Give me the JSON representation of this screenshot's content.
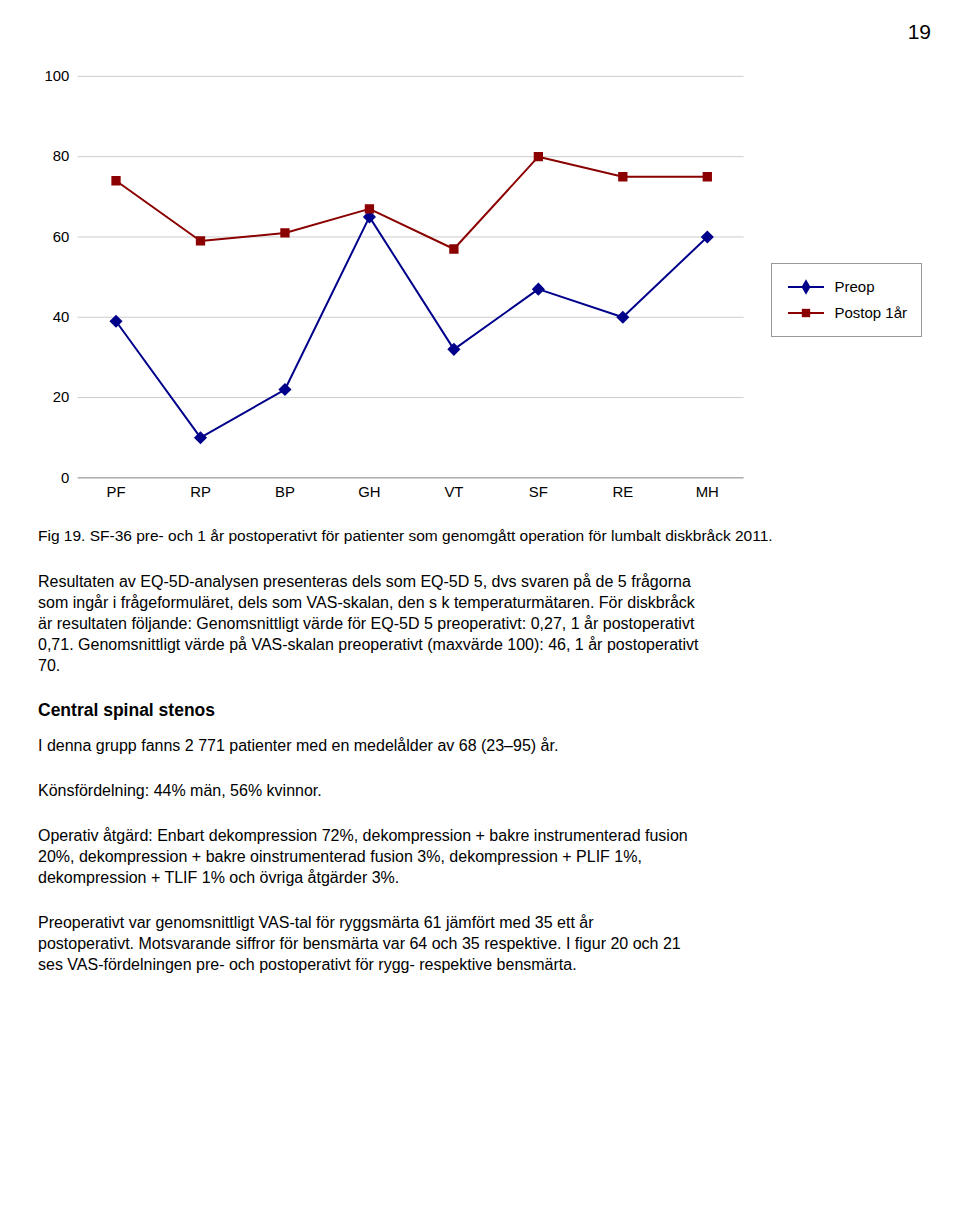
{
  "chart_data": {
    "type": "line",
    "categories": [
      "PF",
      "RP",
      "BP",
      "GH",
      "VT",
      "SF",
      "RE",
      "MH"
    ],
    "series": [
      {
        "name": "Preop",
        "color": "#00008B",
        "marker": "diamond",
        "values": [
          39,
          10,
          22,
          65,
          32,
          47,
          40,
          60
        ]
      },
      {
        "name": "Postop 1år",
        "color": "#8B0000",
        "marker": "square",
        "values": [
          74,
          59,
          61,
          67,
          57,
          80,
          75,
          75
        ]
      }
    ],
    "ylim": [
      0,
      100
    ],
    "yticks": [
      0,
      20,
      40,
      60,
      80,
      100
    ],
    "grid": true,
    "legend": "right",
    "caption": "Fig 19. SF-36 pre- och 1 år postoperativt för patienter som genomgått operation för lumbalt diskbråck 2011."
  },
  "page_number": "19",
  "text_blocks": [
    {
      "lines": [
        "Resultaten av EQ-5D-analysen presenteras dels som EQ-5D 5, dvs svaren på de 5 frågorna",
        "som ingår i frågeformuläret, dels som VAS-skalan, den s k temperaturmätaren. För diskbråck",
        "är resultaten följande: Genomsnittligt värde för EQ-5D 5 preoperativt: 0,27, 1 år postoperativt",
        "0,71. Genomsnittligt värde på VAS-skalan preoperativt (maxvärde 100): 46, 1 år postoperativt",
        "70."
      ]
    },
    {
      "heading": "Central spinal stenos"
    },
    {
      "lines": [
        "I denna grupp fanns 2 771 patienter med en medelålder av 68 (23–95) år."
      ]
    },
    {
      "lines": [
        "Könsfördelning: 44% män, 56% kvinnor."
      ]
    },
    {
      "lines": [
        "Operativ åtgärd: Enbart dekompression 72%, dekompression + bakre instrumenterad fusion",
        "20%, dekompression + bakre oinstrumenterad fusion 3%, dekompression + PLIF 1%,",
        "dekompression + TLIF 1% och övriga åtgärder 3%."
      ]
    },
    {
      "lines": [
        "Preoperativt var genomsnittligt VAS-tal för ryggsmärta 61 jämfört med 35 ett år",
        "postoperativt. Motsvarande siffror för bensmärta var 64 och 35 respektive. I figur 20 och 21",
        "ses VAS-fördelningen pre- och postoperativt för rygg- respektive bensmärta."
      ]
    }
  ]
}
